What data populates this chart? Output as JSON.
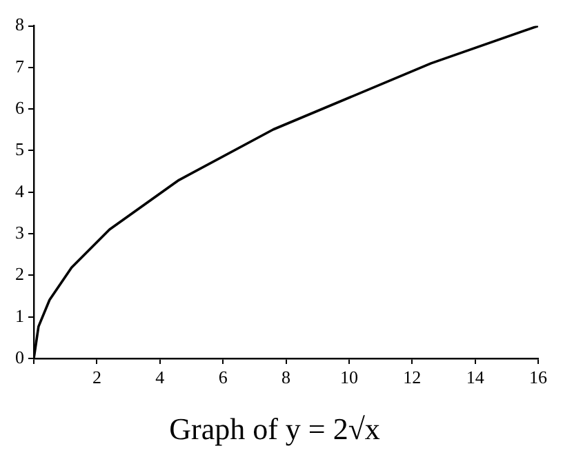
{
  "chart_data": {
    "type": "line",
    "title": "Graph of y = 2√x",
    "x": [
      0,
      0.15,
      0.5,
      1.2,
      2.4,
      4.6,
      7.6,
      12.6,
      16
    ],
    "series": [
      {
        "color": "#000000",
        "values": [
          0,
          0.77,
          1.41,
          2.19,
          3.1,
          4.29,
          5.51,
          7.1,
          8
        ]
      }
    ],
    "xlim": [
      0,
      16
    ],
    "xticks": [
      {
        "value": 0,
        "label": null
      },
      2,
      4,
      6,
      8,
      10,
      12,
      14,
      16
    ],
    "ylim": [
      0,
      8
    ],
    "yticks": [
      0,
      1,
      2,
      3,
      4,
      5,
      6,
      7,
      8
    ],
    "grid": false,
    "legend": false,
    "marker": "none",
    "line_style": "solid"
  }
}
